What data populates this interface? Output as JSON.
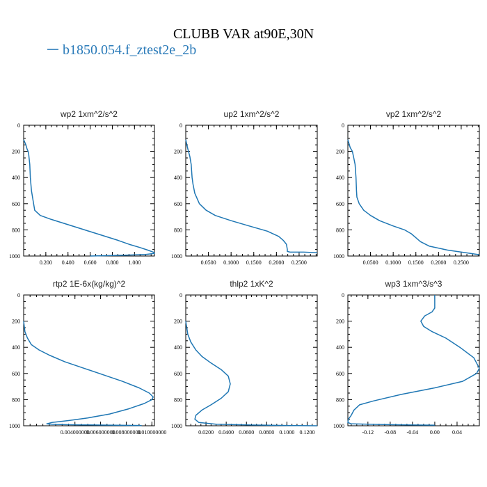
{
  "title": "CLUBB VAR at90E,30N",
  "legend": {
    "label": "b1850.054.f_ztest2e_2b",
    "color": "#2b7bb9"
  },
  "line_color": "#1f77b4",
  "chart_data": [
    {
      "type": "line",
      "title": "wp2  1xm^2/s^2",
      "xlim": [
        0,
        1.18
      ],
      "ylim": [
        0,
        1000
      ],
      "y_inverted": true,
      "xticks": [
        0.2,
        0.4,
        0.6,
        0.8,
        1.0
      ],
      "xtick_labels": [
        "0.200",
        "0.400",
        "0.600",
        "0.800",
        "1.000"
      ],
      "yticks": [
        0,
        200,
        400,
        600,
        800,
        1000
      ],
      "ytick_labels": [
        "0",
        "200",
        "400",
        "600",
        "800",
        "1000"
      ],
      "series": [
        {
          "x": [
            0.0,
            0.02,
            0.03,
            0.04,
            0.045,
            0.05,
            0.055,
            0.06,
            0.07,
            0.09,
            0.1,
            0.15,
            0.25,
            0.4,
            0.55,
            0.7,
            0.85,
            0.95,
            1.05,
            1.12,
            1.17,
            1.18,
            1.1,
            0.9,
            0.7,
            0.6
          ],
          "y": [
            110,
            150,
            180,
            200,
            220,
            260,
            300,
            400,
            500,
            600,
            650,
            690,
            720,
            760,
            800,
            840,
            880,
            910,
            935,
            955,
            970,
            980,
            988,
            994,
            998,
            1000
          ]
        }
      ]
    },
    {
      "type": "line",
      "title": "up2  1xm^2/s^2",
      "xlim": [
        0,
        0.29
      ],
      "ylim": [
        0,
        1000
      ],
      "y_inverted": true,
      "xticks": [
        0.05,
        0.1,
        0.15,
        0.2,
        0.25
      ],
      "xtick_labels": [
        "0.0500",
        "0.1000",
        "0.1500",
        "0.2000",
        "0.2500"
      ],
      "yticks": [
        0,
        200,
        400,
        600,
        800,
        1000
      ],
      "ytick_labels": [
        "0",
        "200",
        "400",
        "600",
        "800",
        "1000"
      ],
      "series": [
        {
          "x": [
            0.0,
            0.003,
            0.006,
            0.009,
            0.012,
            0.014,
            0.016,
            0.02,
            0.03,
            0.045,
            0.065,
            0.1,
            0.14,
            0.18,
            0.205,
            0.215,
            0.222,
            0.224,
            0.224,
            0.23,
            0.26,
            0.29
          ],
          "y": [
            110,
            160,
            200,
            240,
            300,
            400,
            450,
            520,
            600,
            650,
            690,
            730,
            770,
            810,
            850,
            880,
            910,
            950,
            965,
            970,
            970,
            975
          ]
        }
      ]
    },
    {
      "type": "line",
      "title": "vp2  1xm^2/s^2",
      "xlim": [
        0,
        0.29
      ],
      "ylim": [
        0,
        1000
      ],
      "y_inverted": true,
      "xticks": [
        0.05,
        0.1,
        0.15,
        0.2,
        0.25
      ],
      "xtick_labels": [
        "0.0500",
        "0.1000",
        "0.1500",
        "0.2000",
        "0.2500"
      ],
      "yticks": [
        0,
        200,
        400,
        600,
        800,
        1000
      ],
      "ytick_labels": [
        "0",
        "200",
        "400",
        "600",
        "800",
        "1000"
      ],
      "series": [
        {
          "x": [
            0.0,
            0.005,
            0.01,
            0.013,
            0.016,
            0.018,
            0.019,
            0.02,
            0.025,
            0.035,
            0.05,
            0.07,
            0.1,
            0.125,
            0.14,
            0.15,
            0.16,
            0.18,
            0.22,
            0.26,
            0.29
          ],
          "y": [
            110,
            170,
            200,
            250,
            300,
            400,
            500,
            550,
            600,
            650,
            690,
            730,
            770,
            800,
            830,
            860,
            890,
            925,
            955,
            975,
            990
          ]
        }
      ]
    },
    {
      "type": "line",
      "title": "rtp2  1E-6x(kg/kg)^2",
      "xlim": [
        0,
        0.0102
      ],
      "ylim": [
        0,
        1000
      ],
      "y_inverted": true,
      "xticks": [
        0.004,
        0.006,
        0.008,
        0.01
      ],
      "xtick_labels": [
        "0.004000000",
        "0.006000000",
        "0.008000000",
        "0.010000000"
      ],
      "yticks": [
        0,
        200,
        400,
        600,
        800,
        1000
      ],
      "ytick_labels": [
        "0",
        "200",
        "400",
        "600",
        "800",
        "1000"
      ],
      "series": [
        {
          "x": [
            0.0,
            0.0001,
            0.0003,
            0.0006,
            0.0012,
            0.002,
            0.0032,
            0.0047,
            0.0062,
            0.0077,
            0.009,
            0.0098,
            0.0101,
            0.01,
            0.0094,
            0.0082,
            0.0067,
            0.005,
            0.0035,
            0.0022,
            0.0018,
            0.0025,
            0.0045,
            0.0075,
            0.0092
          ],
          "y": [
            200,
            280,
            330,
            380,
            420,
            460,
            510,
            560,
            610,
            660,
            710,
            750,
            780,
            800,
            830,
            870,
            910,
            940,
            960,
            975,
            985,
            990,
            993,
            996,
            998
          ]
        }
      ]
    },
    {
      "type": "line",
      "title": "thlp2  1xK^2",
      "xlim": [
        0,
        0.13
      ],
      "ylim": [
        0,
        1000
      ],
      "y_inverted": true,
      "xticks": [
        0.02,
        0.04,
        0.06,
        0.08,
        0.1,
        0.12
      ],
      "xtick_labels": [
        "0.0200",
        "0.0400",
        "0.0600",
        "0.0800",
        "0.1000",
        "0.1200"
      ],
      "yticks": [
        0,
        200,
        400,
        600,
        800,
        1000
      ],
      "ytick_labels": [
        "0",
        "200",
        "400",
        "600",
        "800",
        "1000"
      ],
      "series": [
        {
          "x": [
            0.0,
            0.002,
            0.005,
            0.01,
            0.016,
            0.025,
            0.035,
            0.042,
            0.044,
            0.042,
            0.035,
            0.025,
            0.016,
            0.01,
            0.009,
            0.013,
            0.03,
            0.065,
            0.1,
            0.13
          ],
          "y": [
            200,
            300,
            360,
            420,
            470,
            520,
            570,
            620,
            680,
            740,
            790,
            840,
            880,
            920,
            950,
            975,
            988,
            994,
            998,
            1000
          ]
        }
      ]
    },
    {
      "type": "line",
      "title": "wp3  1xm^3/s^3",
      "xlim": [
        -0.156,
        0.08
      ],
      "ylim": [
        0,
        1000
      ],
      "y_inverted": true,
      "xticks": [
        -0.12,
        -0.08,
        -0.04,
        0.0,
        0.04
      ],
      "xtick_labels": [
        "-0.12",
        "-0.08",
        "-0.04",
        "0.00",
        "0.04"
      ],
      "yticks": [
        0,
        200,
        400,
        600,
        800,
        1000
      ],
      "ytick_labels": [
        "0",
        "200",
        "400",
        "600",
        "800",
        "1000"
      ],
      "series": [
        {
          "x": [
            0.0,
            0.0,
            -0.005,
            -0.018,
            -0.025,
            -0.02,
            -0.005,
            0.02,
            0.045,
            0.07,
            0.08,
            0.075,
            0.05,
            0.0,
            -0.06,
            -0.11,
            -0.135,
            -0.145,
            -0.15,
            -0.155,
            -0.156,
            -0.15,
            -0.1,
            -0.05,
            0.0
          ],
          "y": [
            0,
            100,
            130,
            160,
            200,
            240,
            280,
            330,
            400,
            480,
            560,
            600,
            660,
            710,
            760,
            810,
            840,
            880,
            920,
            950,
            975,
            985,
            990,
            993,
            995
          ]
        }
      ]
    }
  ]
}
